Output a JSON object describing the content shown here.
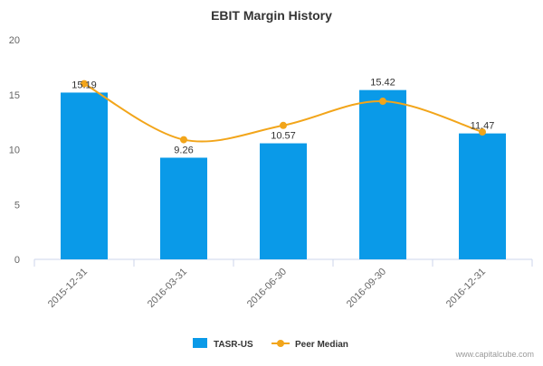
{
  "chart_data": {
    "type": "bar",
    "title": "EBIT Margin History",
    "categories": [
      "2015-12-31",
      "2016-03-31",
      "2016-06-30",
      "2016-09-30",
      "2016-12-31"
    ],
    "series": [
      {
        "name": "TASR-US",
        "kind": "bar",
        "values": [
          15.19,
          9.26,
          10.57,
          15.42,
          11.47
        ],
        "color": "#0a9ae8"
      },
      {
        "name": "Peer Median",
        "kind": "line",
        "smooth": true,
        "values": [
          16.0,
          10.9,
          12.2,
          14.4,
          11.6
        ],
        "color": "#f2a51a"
      }
    ],
    "data_labels": [
      "15.19",
      "9.26",
      "10.57",
      "15.42",
      "11.47"
    ],
    "ylim": [
      0,
      20
    ],
    "yticks": [
      0,
      5,
      10,
      15,
      20
    ],
    "xlabel": "",
    "ylabel": "",
    "grid": false,
    "legend": "bottom-center"
  },
  "watermark": "www.capitalcube.com",
  "colors": {
    "axis": "#ccd6eb",
    "text": "#333333",
    "tick": "#666666",
    "watermark": "#999999"
  }
}
